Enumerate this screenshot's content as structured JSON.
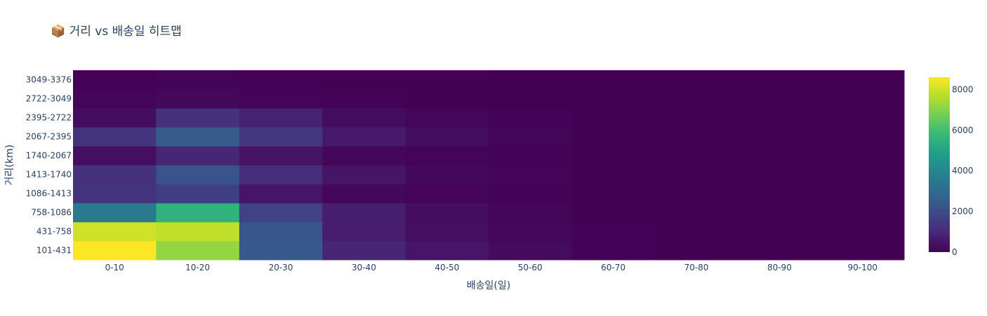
{
  "chart_data": {
    "type": "heatmap",
    "title": "📦 거리 vs 배송일 히트맵",
    "xlabel": "배송일(일)",
    "ylabel": "거리(km)",
    "x_categories": [
      "0-10",
      "10-20",
      "20-30",
      "30-40",
      "40-50",
      "50-60",
      "60-70",
      "70-80",
      "80-90",
      "90-100"
    ],
    "y_categories": [
      "101-431",
      "431-758",
      "758-1086",
      "1086-1413",
      "1413-1740",
      "1740-2067",
      "2067-2395",
      "2395-2722",
      "2722-3049",
      "3049-3376"
    ],
    "z": [
      [
        8600,
        7200,
        2400,
        900,
        500,
        250,
        60,
        20,
        10,
        5
      ],
      [
        8000,
        7800,
        2300,
        700,
        350,
        150,
        40,
        15,
        5,
        3
      ],
      [
        3500,
        5500,
        1700,
        700,
        300,
        120,
        30,
        10,
        5,
        2
      ],
      [
        1300,
        1600,
        500,
        150,
        80,
        40,
        10,
        5,
        2,
        1
      ],
      [
        1200,
        2200,
        1100,
        500,
        200,
        80,
        20,
        5,
        2,
        1
      ],
      [
        350,
        900,
        450,
        150,
        80,
        40,
        10,
        5,
        2,
        1
      ],
      [
        1300,
        2500,
        1400,
        600,
        300,
        100,
        30,
        10,
        5,
        2
      ],
      [
        300,
        1200,
        800,
        300,
        150,
        50,
        15,
        5,
        2,
        1
      ],
      [
        120,
        200,
        100,
        60,
        30,
        10,
        5,
        2,
        1,
        1
      ],
      [
        50,
        100,
        50,
        30,
        15,
        5,
        2,
        1,
        1,
        1
      ]
    ],
    "colorscale": "Viridis",
    "zmin": 0,
    "zmax": 8600,
    "colorbar_ticks": [
      0,
      2000,
      4000,
      6000,
      8000
    ],
    "colorbar_tick_labels": [
      "0",
      "2000",
      "4000",
      "6000",
      "8000"
    ]
  }
}
